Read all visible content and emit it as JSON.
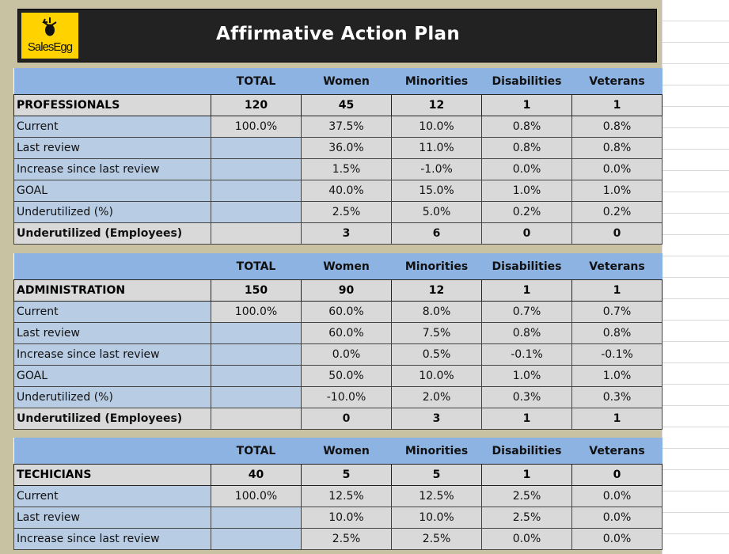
{
  "app": {
    "title": "Affirmative Action Plan",
    "logo_text": "SalesEgg"
  },
  "columns": [
    "TOTAL",
    "Women",
    "Minorities",
    "Disabilities",
    "Veterans"
  ],
  "sections": [
    {
      "name": "PROFESSIONALS",
      "counts": [
        "120",
        "45",
        "12",
        "1",
        "1"
      ],
      "rows": [
        {
          "label": "Current",
          "values": [
            "100.0%",
            "37.5%",
            "10.0%",
            "0.8%",
            "0.8%"
          ]
        },
        {
          "label": "Last review",
          "values": [
            "",
            "36.0%",
            "11.0%",
            "0.8%",
            "0.8%"
          ]
        },
        {
          "label": "Increase since last review",
          "values": [
            "",
            "1.5%",
            "-1.0%",
            "0.0%",
            "0.0%"
          ]
        },
        {
          "label": "GOAL",
          "values": [
            "",
            "40.0%",
            "15.0%",
            "1.0%",
            "1.0%"
          ]
        },
        {
          "label": "Underutilized (%)",
          "values": [
            "",
            "2.5%",
            "5.0%",
            "0.2%",
            "0.2%"
          ]
        },
        {
          "label": "Underutilized (Employees)",
          "values": [
            "",
            "3",
            "6",
            "0",
            "0"
          ]
        }
      ]
    },
    {
      "name": "ADMINISTRATION",
      "counts": [
        "150",
        "90",
        "12",
        "1",
        "1"
      ],
      "rows": [
        {
          "label": "Current",
          "values": [
            "100.0%",
            "60.0%",
            "8.0%",
            "0.7%",
            "0.7%"
          ]
        },
        {
          "label": "Last review",
          "values": [
            "",
            "60.0%",
            "7.5%",
            "0.8%",
            "0.8%"
          ]
        },
        {
          "label": "Increase since last review",
          "values": [
            "",
            "0.0%",
            "0.5%",
            "-0.1%",
            "-0.1%"
          ]
        },
        {
          "label": "GOAL",
          "values": [
            "",
            "50.0%",
            "10.0%",
            "1.0%",
            "1.0%"
          ]
        },
        {
          "label": "Underutilized (%)",
          "values": [
            "",
            "-10.0%",
            "2.0%",
            "0.3%",
            "0.3%"
          ]
        },
        {
          "label": "Underutilized (Employees)",
          "values": [
            "",
            "0",
            "3",
            "1",
            "1"
          ]
        }
      ]
    },
    {
      "name": "TECHICIANS",
      "counts": [
        "40",
        "5",
        "5",
        "1",
        "0"
      ],
      "rows": [
        {
          "label": "Current",
          "values": [
            "100.0%",
            "12.5%",
            "12.5%",
            "2.5%",
            "0.0%"
          ]
        },
        {
          "label": "Last review",
          "values": [
            "",
            "10.0%",
            "10.0%",
            "2.5%",
            "0.0%"
          ]
        },
        {
          "label": "Increase since last review",
          "values": [
            "",
            "2.5%",
            "2.5%",
            "0.0%",
            "0.0%"
          ]
        }
      ]
    }
  ],
  "colors": {
    "header_blue": "#8db3e2",
    "label_blue": "#b8cce4",
    "cell_grey": "#d9d9d9",
    "frame_tan": "#c8c1a2",
    "logo_yellow": "#ffd200"
  }
}
